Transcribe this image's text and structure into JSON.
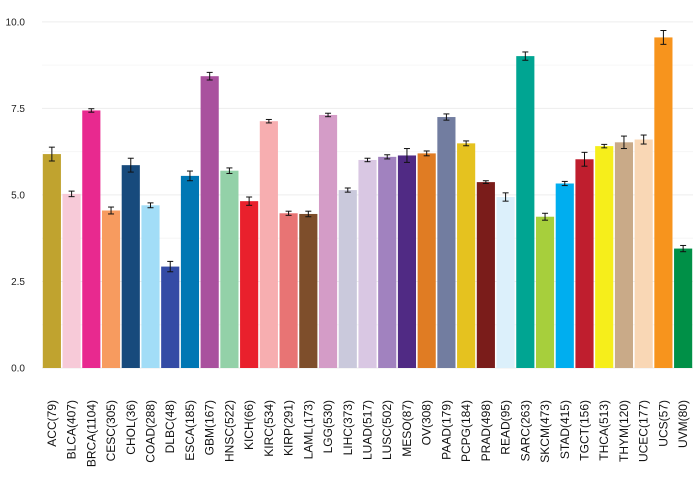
{
  "chart_data": {
    "type": "bar",
    "title": "",
    "xlabel": "",
    "ylabel": "",
    "ylim": [
      0,
      10.4
    ],
    "yticks": [
      0,
      2.5,
      5,
      7.5,
      10
    ],
    "ytick_labels": [
      "0.0",
      "2.5",
      "5.0",
      "7.5",
      "10.0"
    ],
    "grid": true,
    "legend": "none",
    "error_bars": true,
    "categories": [
      "ACC(79)",
      "BLCA(407)",
      "BRCA(1104)",
      "CESC(305)",
      "CHOL(36)",
      "COAD(288)",
      "DLBC(48)",
      "ESCA(185)",
      "GBM(167)",
      "HNSC(522)",
      "KICH(66)",
      "KIRC(534)",
      "KIRP(291)",
      "LAML(173)",
      "LGG(530)",
      "LIHC(373)",
      "LUAD(517)",
      "LUSC(502)",
      "MESO(87)",
      "OV(308)",
      "PAAD(179)",
      "PCPG(184)",
      "PRAD(498)",
      "READ(95)",
      "SARC(263)",
      "SKCM(473)",
      "STAD(415)",
      "TGCT(156)",
      "THCA(513)",
      "THYM(120)",
      "UCEC(177)",
      "UCS(57)",
      "UVM(80)"
    ],
    "values": [
      6.18,
      5.03,
      7.44,
      4.55,
      5.86,
      4.7,
      2.93,
      5.55,
      8.43,
      5.7,
      4.82,
      7.13,
      4.47,
      4.45,
      7.31,
      5.14,
      6.01,
      6.1,
      6.14,
      6.2,
      7.25,
      6.49,
      5.37,
      4.94,
      9.01,
      4.37,
      5.33,
      6.03,
      6.41,
      6.52,
      6.6,
      9.55,
      3.45
    ],
    "errors": [
      0.2,
      0.08,
      0.05,
      0.1,
      0.2,
      0.07,
      0.15,
      0.14,
      0.11,
      0.08,
      0.12,
      0.05,
      0.06,
      0.08,
      0.05,
      0.06,
      0.05,
      0.06,
      0.2,
      0.07,
      0.09,
      0.07,
      0.04,
      0.12,
      0.12,
      0.1,
      0.06,
      0.2,
      0.05,
      0.18,
      0.13,
      0.2,
      0.09
    ],
    "colors": [
      "#C0A32F",
      "#F7CAD8",
      "#E8298F",
      "#F79B5F",
      "#174A7C",
      "#A2DDF7",
      "#344BA5",
      "#0077B4",
      "#A9519E",
      "#93D1A8",
      "#E9202C",
      "#F7AEB0",
      "#E87474",
      "#7E4E2B",
      "#D49CC7",
      "#CAC9DC",
      "#D9C7E3",
      "#A182BF",
      "#502A84",
      "#E07C23",
      "#727DA0",
      "#E5C21F",
      "#7A1C1A",
      "#DCF0FB",
      "#00A592",
      "#A7CF3C",
      "#00AEEF",
      "#BF1E2E",
      "#F6EE1B",
      "#C9AA88",
      "#F9D7B5",
      "#F7941D",
      "#009047"
    ]
  }
}
